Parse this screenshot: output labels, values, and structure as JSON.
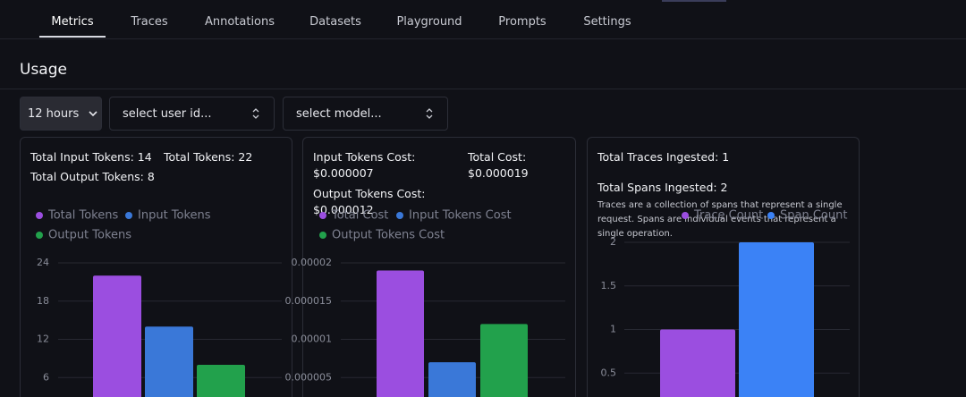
{
  "tabs": [
    "Metrics",
    "Traces",
    "Annotations",
    "Datasets",
    "Playground",
    "Prompts",
    "Settings"
  ],
  "heading": "Usage",
  "filters": [
    "12 hours",
    "select user id...",
    "select model..."
  ],
  "cards": [
    {
      "stats": [
        "Total Input Tokens: 14",
        "Total Tokens: 22",
        "Total Output Tokens: 8"
      ],
      "chart": {
        "type": "bar",
        "ylim": [
          0,
          24
        ],
        "yticks": [
          6,
          12,
          18,
          24
        ],
        "grid": true,
        "series": [
          {
            "name": "Total Tokens",
            "color": "#9b4ee0",
            "values": [
              22
            ]
          },
          {
            "name": "Input Tokens",
            "color": "#3a78d8",
            "values": [
              14
            ]
          },
          {
            "name": "Output Tokens",
            "color": "#22a14c",
            "values": [
              8
            ]
          }
        ]
      }
    },
    {
      "stats": [
        {
          "label": "Input Tokens Cost:",
          "value": "$0.000007"
        },
        {
          "label": "Total Cost:",
          "value": "$0.000019"
        },
        {
          "label": "Output Tokens Cost:",
          "value": "$0.000012"
        }
      ],
      "chart": {
        "type": "bar",
        "ylim": [
          0,
          2e-05
        ],
        "yticks": [
          {
            "value": 5e-06,
            "label": "0.000005"
          },
          {
            "value": 1e-05,
            "label": "0.00001"
          },
          {
            "value": 1.5e-05,
            "label": "0.000015"
          },
          {
            "value": 2e-05,
            "label": "0.00002"
          }
        ],
        "grid": true,
        "series": [
          {
            "name": "Total Cost",
            "color": "#9b4ee0",
            "values": [
              1.9e-05
            ]
          },
          {
            "name": "Input Tokens Cost",
            "color": "#3a78d8",
            "values": [
              7e-06
            ]
          },
          {
            "name": "Output Tokens Cost",
            "color": "#22a14c",
            "values": [
              1.2e-05
            ]
          }
        ]
      }
    },
    {
      "stats": [
        "Total Traces Ingested: 1",
        "Total Spans Ingested: 2"
      ],
      "description": "Traces are a collection of spans that represent a single request. Spans are individual events that represent a single operation.",
      "chart": {
        "type": "bar",
        "ylim": [
          0,
          2
        ],
        "yticks": [
          0.5,
          1,
          1.5,
          2
        ],
        "grid": true,
        "series": [
          {
            "name": "Trace Count",
            "color": "#9b4ee0",
            "values": [
              1
            ]
          },
          {
            "name": "Span Count",
            "color": "#3b82f6",
            "values": [
              2
            ]
          }
        ]
      }
    }
  ]
}
